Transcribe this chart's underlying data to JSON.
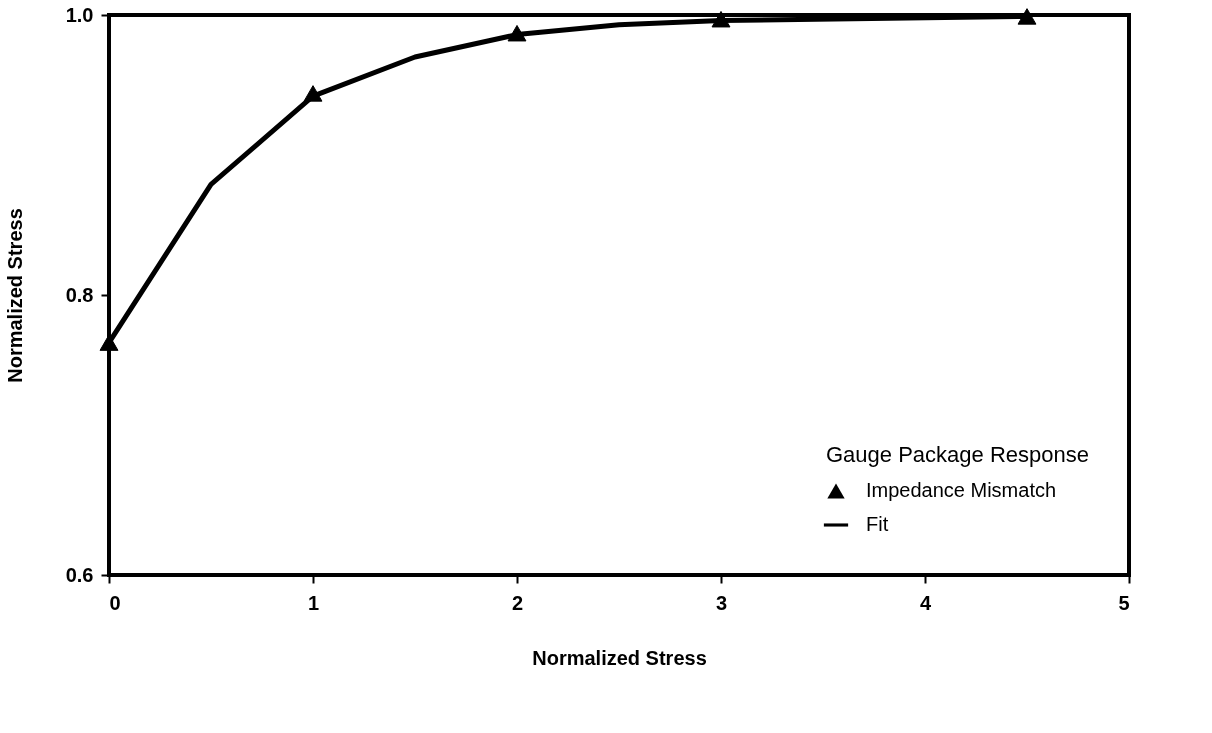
{
  "chart_data": {
    "type": "line",
    "xlabel": "Normalized Stress",
    "ylabel": "Normalized Stress",
    "legend_title": "Gauge Package Response",
    "legend": "bottom right",
    "grid": false,
    "xlim": [
      0,
      5
    ],
    "xticks": [
      0,
      1,
      2,
      3,
      4,
      5
    ],
    "ylim": [
      0.6,
      1.0
    ],
    "yticks": [
      0.6,
      0.8,
      {
        "value": 1,
        "label": "1.0"
      }
    ],
    "series": [
      {
        "name": "Impedance Mismatch",
        "type": "scatter",
        "marker": "triangle",
        "color": "#000000",
        "x": [
          0,
          1,
          2,
          3,
          4.5
        ],
        "values": [
          0.766,
          0.944,
          0.987,
          0.997,
          0.999
        ]
      },
      {
        "name": "Fit",
        "type": "line",
        "marker": "none",
        "line_style": "solid",
        "color": "#000000",
        "x": [
          0,
          0.5,
          1,
          1.5,
          2,
          2.5,
          3,
          4.5
        ],
        "values": [
          0.766,
          0.879,
          0.942,
          0.97,
          0.986,
          0.993,
          0.996,
          0.999
        ]
      }
    ]
  }
}
